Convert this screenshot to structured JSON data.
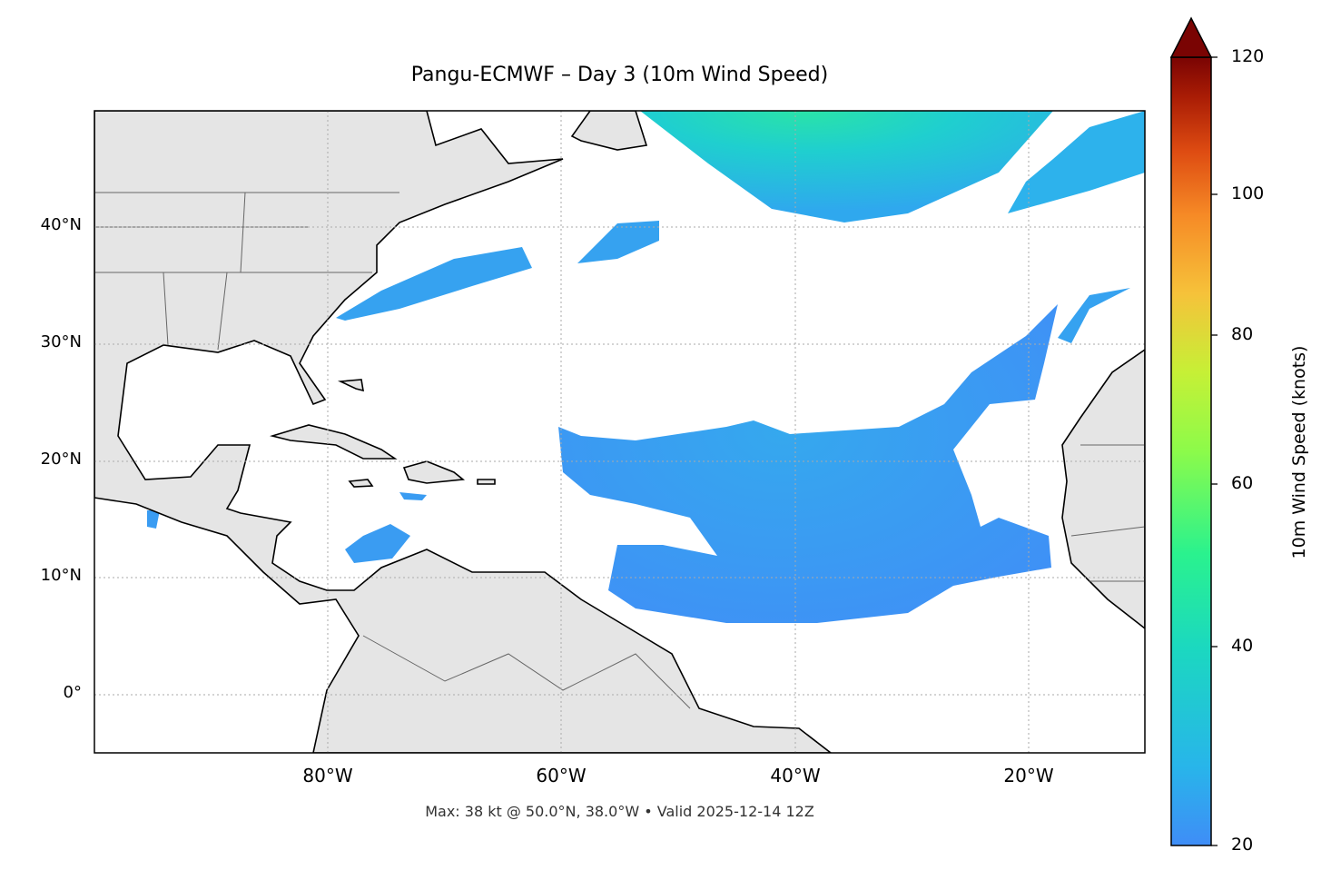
{
  "title": "Pangu-ECMWF – Day 3 (10m Wind Speed)",
  "footer": "Max: 38 kt @ 50.0°N, 38.0°W • Valid 2025-12-14 12Z",
  "map": {
    "extent_lon": [
      -100,
      -10
    ],
    "extent_lat": [
      -5,
      50
    ],
    "gridlines": "dotted",
    "land_color": "#e5e5e5",
    "coastline_color": "#000000",
    "border_color": "#666666",
    "x_ticks": [
      "80°W",
      "60°W",
      "40°W",
      "20°W"
    ],
    "y_ticks": [
      "40°N",
      "30°N",
      "20°N",
      "10°N",
      "0°"
    ]
  },
  "colorbar": {
    "label": "10m Wind Speed (knots)",
    "ticks": [
      "120",
      "100",
      "80",
      "60",
      "40",
      "20"
    ],
    "range": [
      20,
      120
    ],
    "extend": "max",
    "colormap": "turbo"
  },
  "chart_data": {
    "type": "heatmap",
    "variable": "10m Wind Speed (knots)",
    "max_value": 38,
    "max_location": "50.0°N, 38.0°W",
    "valid": "2025-12-14 12Z"
  }
}
